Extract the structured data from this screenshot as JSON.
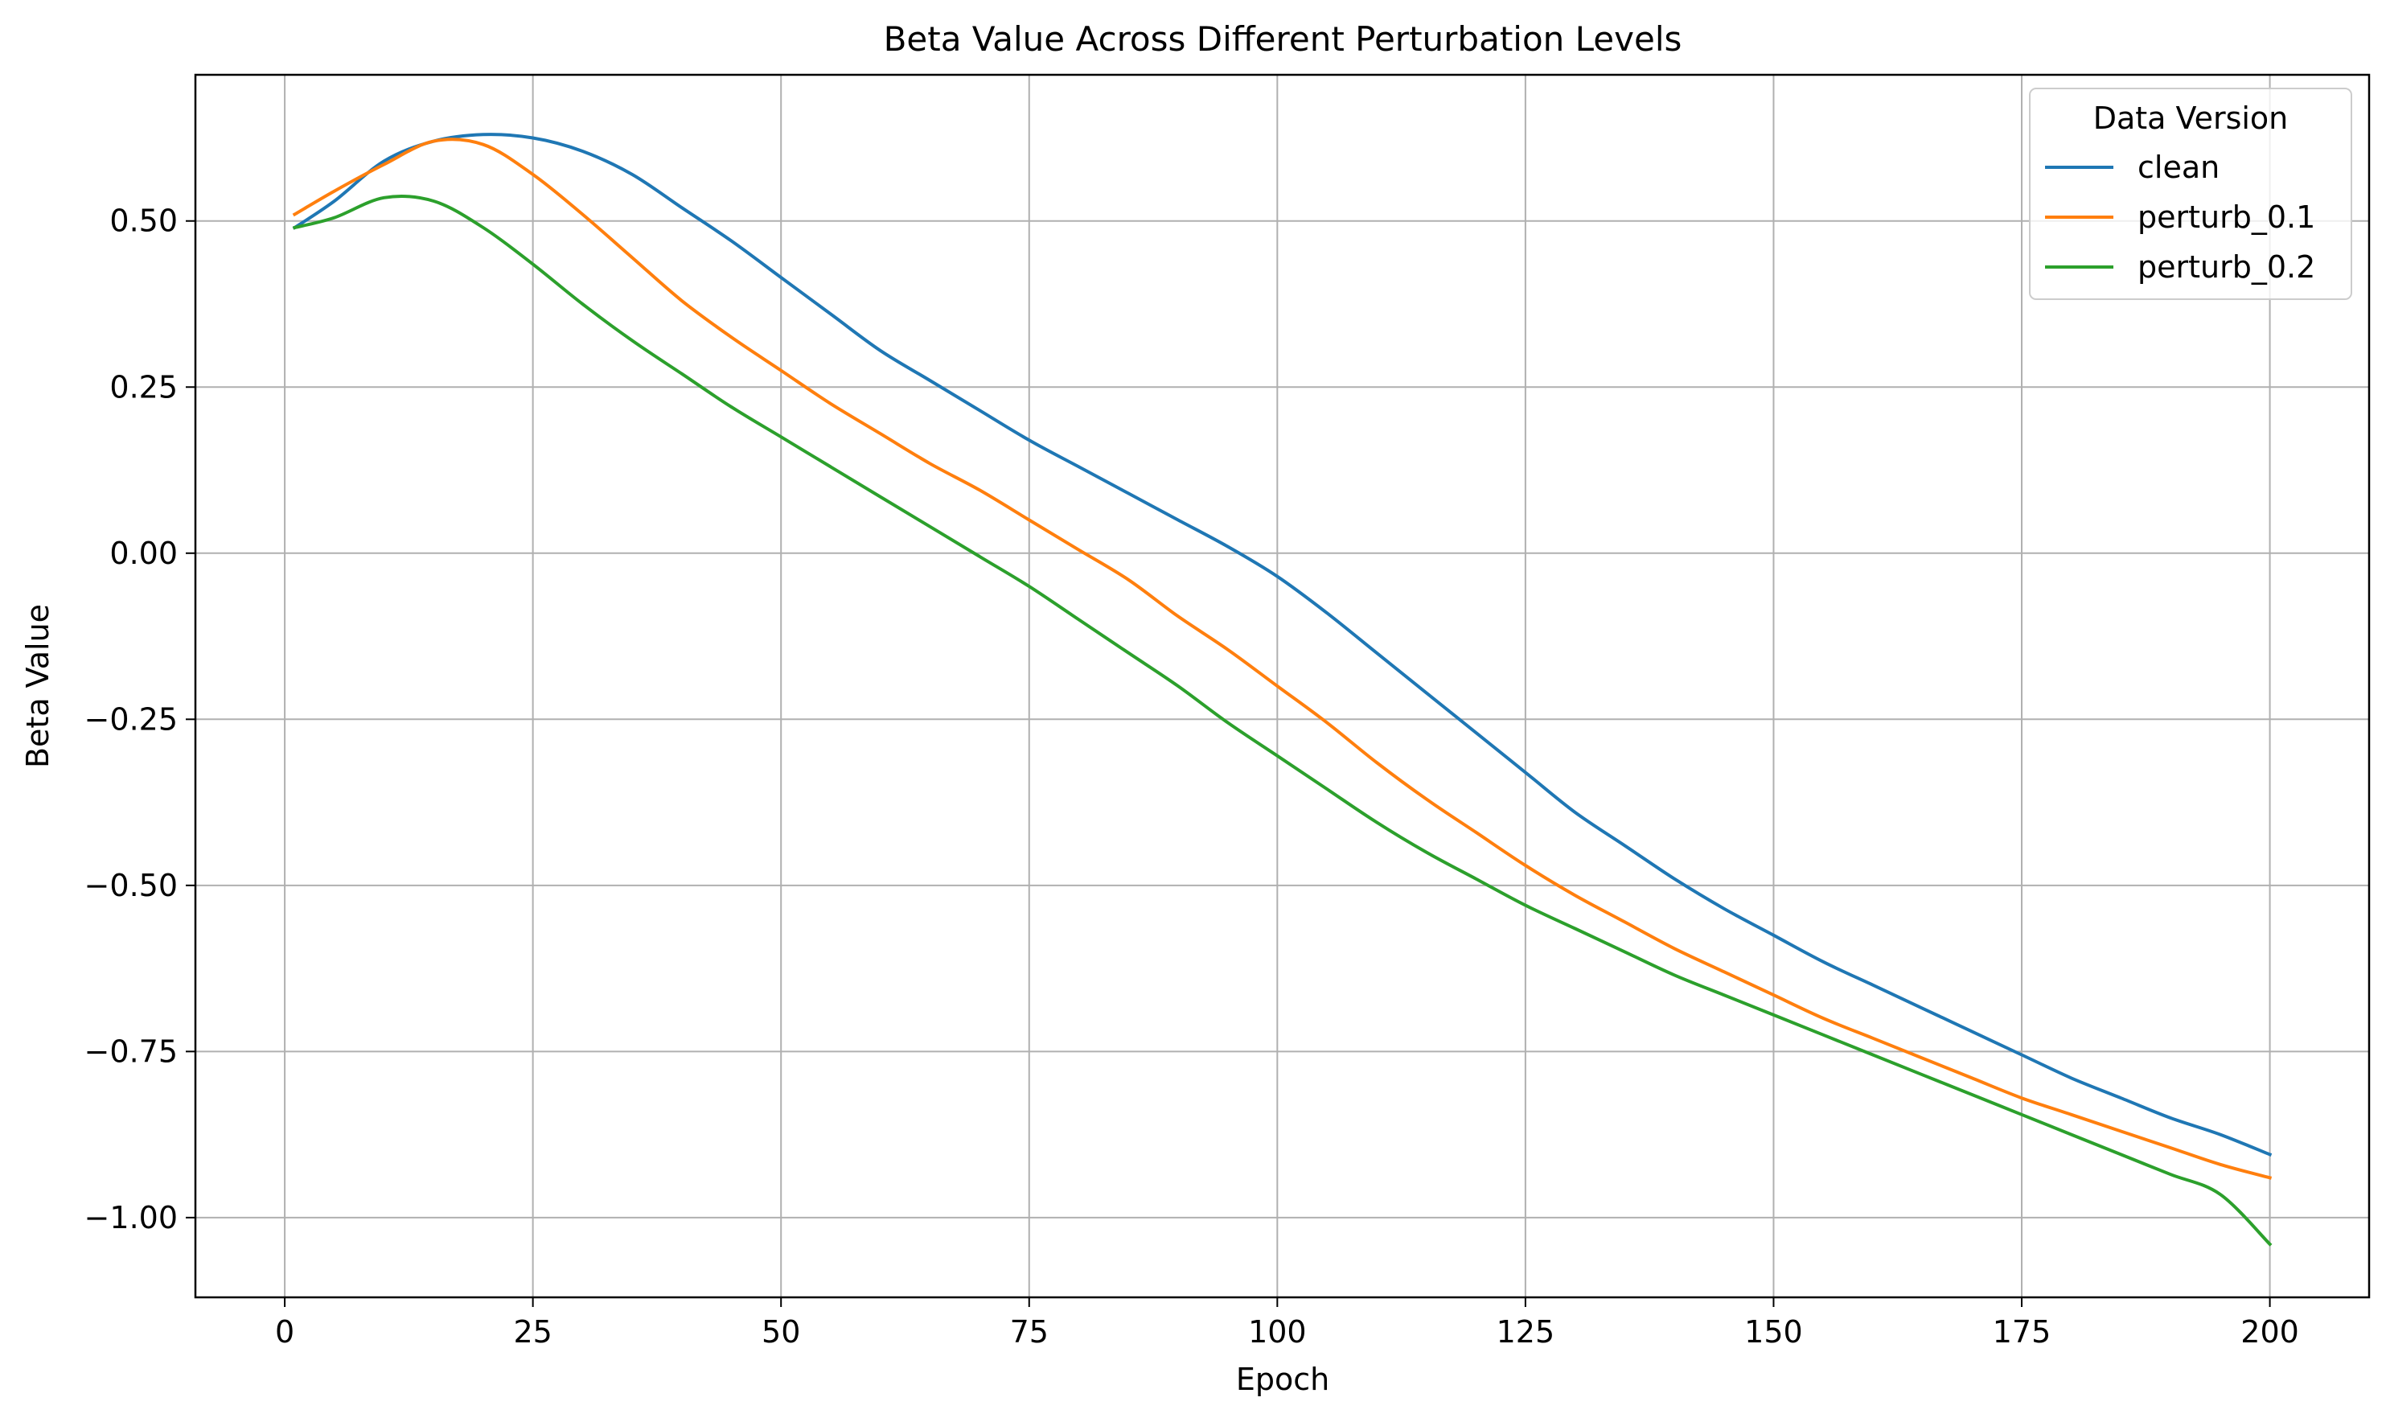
{
  "chart_data": {
    "type": "line",
    "title": "Beta Value Across Different Perturbation Levels",
    "xlabel": "Epoch",
    "ylabel": "Beta Value",
    "xlim": [
      -9,
      210
    ],
    "ylim": [
      -1.12,
      0.72
    ],
    "xticks": [
      0,
      25,
      50,
      75,
      100,
      125,
      150,
      175,
      200
    ],
    "xtick_labels": [
      "0",
      "25",
      "50",
      "75",
      "100",
      "125",
      "150",
      "175",
      "200"
    ],
    "yticks": [
      0.5,
      0.25,
      0.0,
      -0.25,
      -0.5,
      -0.75,
      -1.0
    ],
    "ytick_labels": [
      "0.50",
      "0.25",
      "0.00",
      "−0.25",
      "−0.50",
      "−0.75",
      "−1.00"
    ],
    "grid": true,
    "legend": {
      "title": "Data Version",
      "position": "top-right"
    },
    "x": [
      1,
      5,
      10,
      15,
      20,
      25,
      30,
      35,
      40,
      45,
      50,
      55,
      60,
      65,
      70,
      75,
      80,
      85,
      90,
      95,
      100,
      105,
      110,
      115,
      120,
      125,
      130,
      135,
      140,
      145,
      150,
      155,
      160,
      165,
      170,
      175,
      180,
      185,
      190,
      195,
      200
    ],
    "series": [
      {
        "name": "clean",
        "color": "#1f77b4",
        "values": [
          0.49,
          0.53,
          0.59,
          0.62,
          0.63,
          0.625,
          0.605,
          0.57,
          0.52,
          0.47,
          0.415,
          0.36,
          0.305,
          0.26,
          0.215,
          0.17,
          0.13,
          0.09,
          0.05,
          0.01,
          -0.035,
          -0.09,
          -0.15,
          -0.21,
          -0.27,
          -0.33,
          -0.39,
          -0.44,
          -0.49,
          -0.535,
          -0.575,
          -0.615,
          -0.65,
          -0.685,
          -0.72,
          -0.755,
          -0.79,
          -0.82,
          -0.85,
          -0.875,
          -0.905
        ]
      },
      {
        "name": "perturb_0.1",
        "color": "#ff7f0e",
        "values": [
          0.51,
          0.545,
          0.585,
          0.62,
          0.615,
          0.57,
          0.51,
          0.445,
          0.38,
          0.325,
          0.275,
          0.225,
          0.18,
          0.135,
          0.095,
          0.05,
          0.005,
          -0.04,
          -0.095,
          -0.145,
          -0.2,
          -0.255,
          -0.315,
          -0.37,
          -0.42,
          -0.47,
          -0.515,
          -0.555,
          -0.595,
          -0.63,
          -0.665,
          -0.7,
          -0.73,
          -0.76,
          -0.79,
          -0.82,
          -0.845,
          -0.87,
          -0.895,
          -0.92,
          -0.94
        ]
      },
      {
        "name": "perturb_0.2",
        "color": "#2ca02c",
        "values": [
          0.49,
          0.505,
          0.535,
          0.53,
          0.49,
          0.435,
          0.375,
          0.32,
          0.27,
          0.22,
          0.175,
          0.13,
          0.085,
          0.04,
          -0.005,
          -0.05,
          -0.1,
          -0.15,
          -0.2,
          -0.255,
          -0.305,
          -0.355,
          -0.405,
          -0.45,
          -0.49,
          -0.53,
          -0.565,
          -0.6,
          -0.635,
          -0.665,
          -0.695,
          -0.725,
          -0.755,
          -0.785,
          -0.815,
          -0.845,
          -0.875,
          -0.905,
          -0.935,
          -0.965,
          -1.04
        ]
      }
    ]
  }
}
